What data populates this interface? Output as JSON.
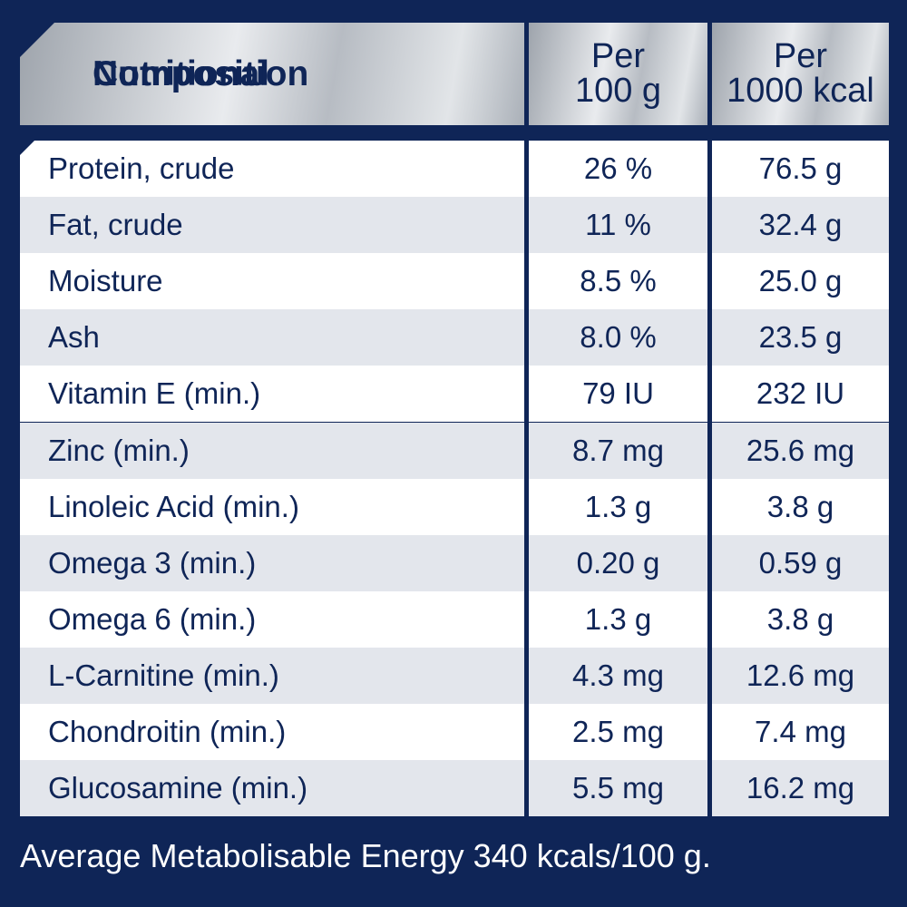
{
  "header": {
    "name_line1": "Nutritional",
    "name_line2": "Composition",
    "col1_line1": "Per",
    "col1_line2": "100 g",
    "col2_line1": "Per",
    "col2_line2": "1000 kcal"
  },
  "rows": [
    {
      "name": "Protein, crude",
      "per100g": "26 %",
      "per1000kcal": "76.5 g"
    },
    {
      "name": "Fat, crude",
      "per100g": "11 %",
      "per1000kcal": "32.4 g"
    },
    {
      "name": "Moisture",
      "per100g": "8.5 %",
      "per1000kcal": "25.0 g"
    },
    {
      "name": "Ash",
      "per100g": "8.0 %",
      "per1000kcal": "23.5 g"
    },
    {
      "name": "Vitamin E (min.)",
      "per100g": "79 IU",
      "per1000kcal": "232 IU"
    },
    {
      "name": "Zinc (min.)",
      "per100g": "8.7 mg",
      "per1000kcal": "25.6 mg"
    },
    {
      "name": "Linoleic Acid (min.)",
      "per100g": "1.3 g",
      "per1000kcal": "3.8 g"
    },
    {
      "name": "Omega 3 (min.)",
      "per100g": "0.20 g",
      "per1000kcal": "0.59 g"
    },
    {
      "name": "Omega 6 (min.)",
      "per100g": "1.3 g",
      "per1000kcal": "3.8 g"
    },
    {
      "name": "L-Carnitine (min.)",
      "per100g": "4.3 mg",
      "per1000kcal": "12.6 mg"
    },
    {
      "name": "Chondroitin (min.)",
      "per100g": "2.5 mg",
      "per1000kcal": "7.4 mg"
    },
    {
      "name": "Glucosamine (min.)",
      "per100g": "5.5 mg",
      "per1000kcal": "16.2 mg"
    }
  ],
  "footer": "Average Metabolisable Energy 340 kcals/100 g.",
  "colors": {
    "background": "#0f2557",
    "text": "#0f2557",
    "row_alt": "#e3e6ec"
  }
}
